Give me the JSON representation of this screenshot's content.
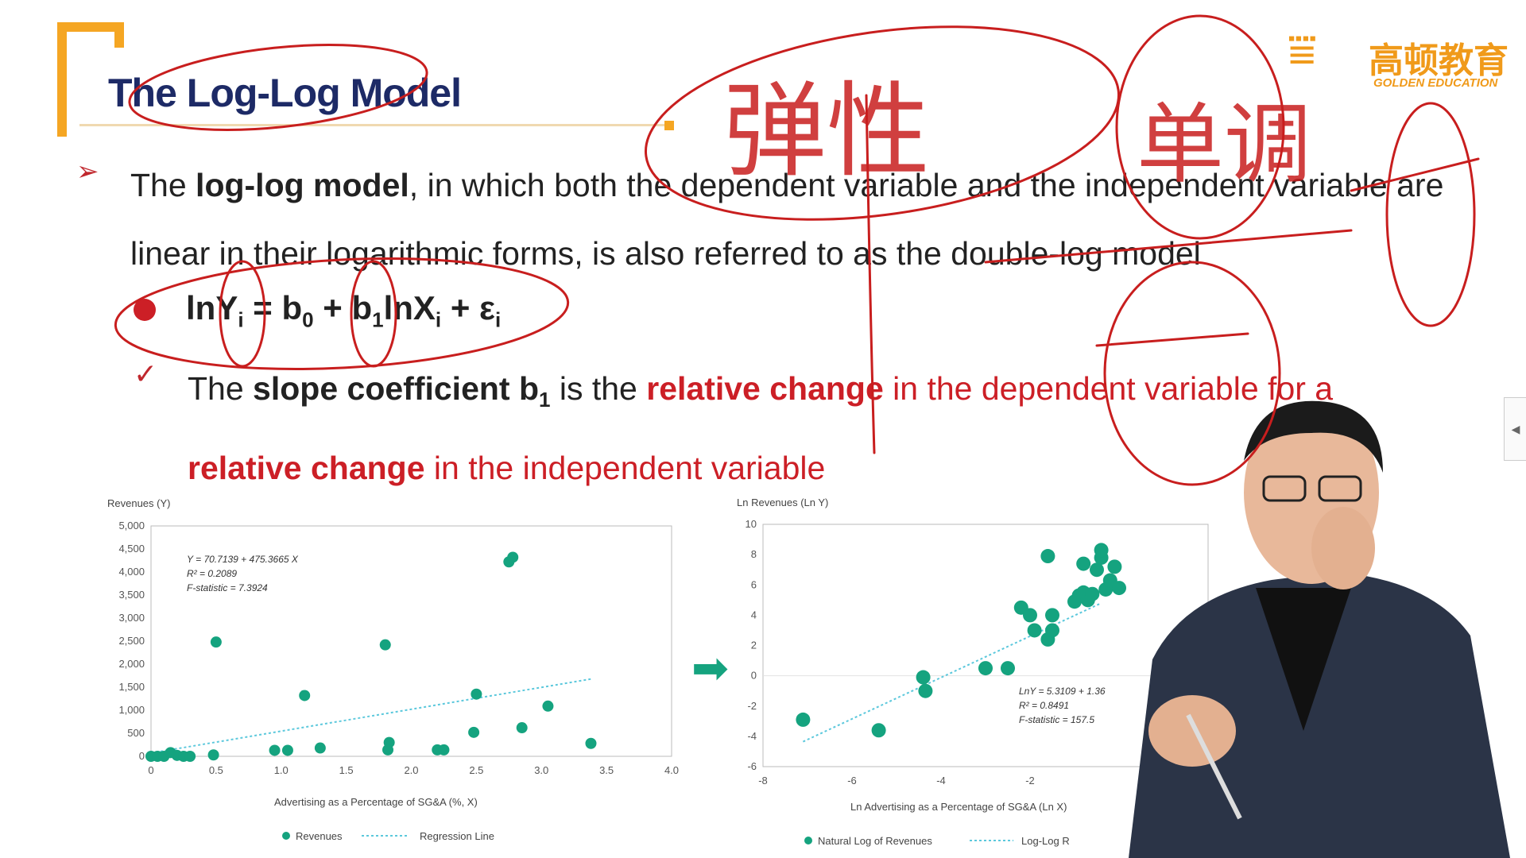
{
  "slide": {
    "title": "The Log-Log Model",
    "logo_cn": "高顿教育",
    "logo_en": "GOLDEN EDUCATION",
    "bullet_text_parts": {
      "p1": "The ",
      "p2": "log-log model",
      "p3": ", in which both the dependent variable and the independent variable are linear in their logarithmic forms, is also referred to as the double-log model"
    },
    "formula": {
      "lnY": "lnY",
      "i1": "i",
      "eq": " = b",
      "zero": "0",
      "plus": " + b",
      "one": "1",
      "lnX": "lnX",
      "i2": "i",
      "eps": " + ε",
      "i3": "i"
    },
    "slope": {
      "s1": "The ",
      "s2": "slope coefficient b",
      "s3": "1",
      "s4": " is the ",
      "s5": "relative change",
      "s6": " in the dependent variable",
      "s7": " for a ",
      "s8": "relative change",
      "s9": " in the independent variable"
    },
    "side_tab": "◀",
    "handwriting_1": "弹性",
    "handwriting_2": "单调"
  },
  "colors": {
    "accent": "#f5a623",
    "red": "#cc1f26",
    "navy": "#1d2a66",
    "green": "#15a37f"
  },
  "chart_data": [
    {
      "type": "scatter",
      "ylabel": "Revenues (Y)",
      "xlabel": "Advertising as a Percentage of SG&A  (%, X)",
      "xlim": [
        0,
        4.0
      ],
      "ylim": [
        0,
        5000
      ],
      "xticks": [
        "0",
        "0.5",
        "1.0",
        "1.5",
        "2.0",
        "2.5",
        "3.0",
        "3.5",
        "4.0"
      ],
      "yticks": [
        "0",
        "500",
        "1,000",
        "1,500",
        "2,000",
        "2,500",
        "3,000",
        "3,500",
        "4,000",
        "4,500",
        "5,000"
      ],
      "annotation": [
        "Y = 70.7139 + 475.3665 X",
        "R² = 0.2089",
        "F-statistic = 7.3924"
      ],
      "legend": [
        "Revenues",
        "Regression Line"
      ],
      "series": [
        {
          "name": "Revenues",
          "x": [
            0.0,
            0.05,
            0.1,
            0.15,
            0.2,
            0.25,
            0.3,
            0.5,
            0.48,
            0.95,
            1.05,
            1.18,
            1.3,
            1.8,
            1.83,
            1.82,
            2.2,
            2.25,
            2.48,
            2.5,
            2.75,
            2.78,
            2.85,
            3.05,
            3.38
          ],
          "y": [
            0,
            0,
            0,
            80,
            20,
            0,
            0,
            2480,
            30,
            130,
            130,
            1320,
            180,
            2420,
            300,
            140,
            140,
            140,
            520,
            1350,
            4220,
            4320,
            620,
            1090,
            280
          ]
        },
        {
          "name": "Regression Line",
          "x": [
            0,
            3.38
          ],
          "y": [
            70.7,
            1677.5
          ]
        }
      ]
    },
    {
      "type": "scatter",
      "ylabel": "Ln Revenues (Ln Y)",
      "xlabel": "Ln Advertising as a Percentage of SG&A (Ln X)",
      "xlim": [
        -8,
        2
      ],
      "ylim": [
        -6,
        10
      ],
      "xticks": [
        "-8",
        "-6",
        "-4",
        "-2"
      ],
      "yticks": [
        "-6",
        "-4",
        "-2",
        "0",
        "2",
        "4",
        "6",
        "8",
        "10"
      ],
      "annotation": [
        "LnY = 5.3109 + 1.36",
        "R² = 0.8491",
        "F-statistic = 157.5"
      ],
      "legend": [
        "Natural Log of Revenues",
        "Log-Log R"
      ],
      "series": [
        {
          "name": "Natural Log of Revenues",
          "x": [
            -7.1,
            -5.4,
            -4.4,
            -4.35,
            -3.0,
            -2.5,
            -2.2,
            -2.0,
            -1.9,
            -1.6,
            -1.5,
            -1.5,
            -1.0,
            -0.9,
            -0.8,
            -0.7,
            -0.6,
            -0.5,
            -0.4,
            -0.3,
            -0.2,
            -0.1,
            0.0,
            -0.8,
            -0.4,
            -1.6
          ],
          "y": [
            -2.9,
            -3.6,
            -0.1,
            -1.0,
            0.5,
            0.5,
            4.5,
            4.0,
            3.0,
            2.4,
            3.0,
            4.0,
            4.9,
            5.3,
            5.5,
            5.0,
            5.4,
            7.0,
            7.8,
            5.7,
            6.3,
            7.2,
            5.8,
            7.4,
            8.3,
            7.9
          ]
        },
        {
          "name": "Log-Log Regression",
          "x": [
            -7.1,
            -0.4
          ],
          "y": [
            -4.35,
            4.8
          ]
        }
      ]
    }
  ]
}
